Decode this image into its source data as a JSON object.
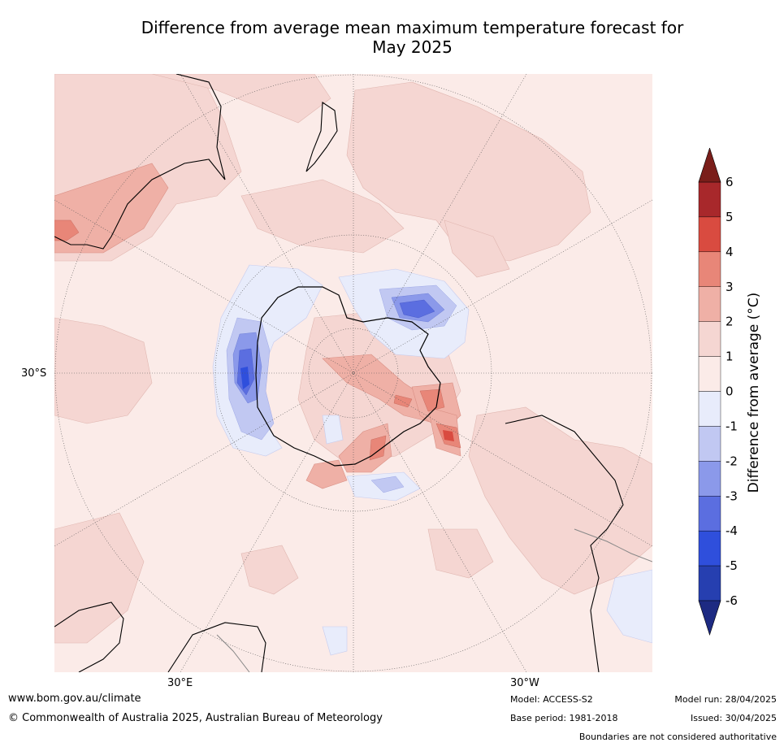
{
  "title_line1": "Difference from average mean maximum temperature forecast for",
  "title_line2": "May 2025",
  "axis_labels": {
    "lat_30s": "30°S",
    "lon_30e": "30°E",
    "lon_30w": "30°W"
  },
  "colorbar": {
    "title": "Difference from average (°C)",
    "ticks": [
      "6",
      "5",
      "4",
      "3",
      "2",
      "1",
      "0",
      "-1",
      "-2",
      "-3",
      "-4",
      "-5",
      "-6"
    ],
    "colors": [
      "#a8282b",
      "#d94b40",
      "#e88678",
      "#efb0a6",
      "#f5d6d2",
      "#fbebe8",
      "#e8ecfb",
      "#c1c8f2",
      "#8b99ea",
      "#5b6ee0",
      "#2f4fdc",
      "#263fb0"
    ],
    "over_color": "#7a1e1a",
    "under_color": "#1d2a82"
  },
  "footer": {
    "url": "www.bom.gov.au/climate",
    "copyright": "© Commonwealth of Australia 2025, Australian Bureau of Meteorology",
    "model": "Model: ACCESS-S2",
    "base_period": "Base period: 1981-2018",
    "model_run": "Model run: 28/04/2025",
    "issued": "Issued: 30/04/2025",
    "disclaimer": "Boundaries are not considered authoritative"
  }
}
